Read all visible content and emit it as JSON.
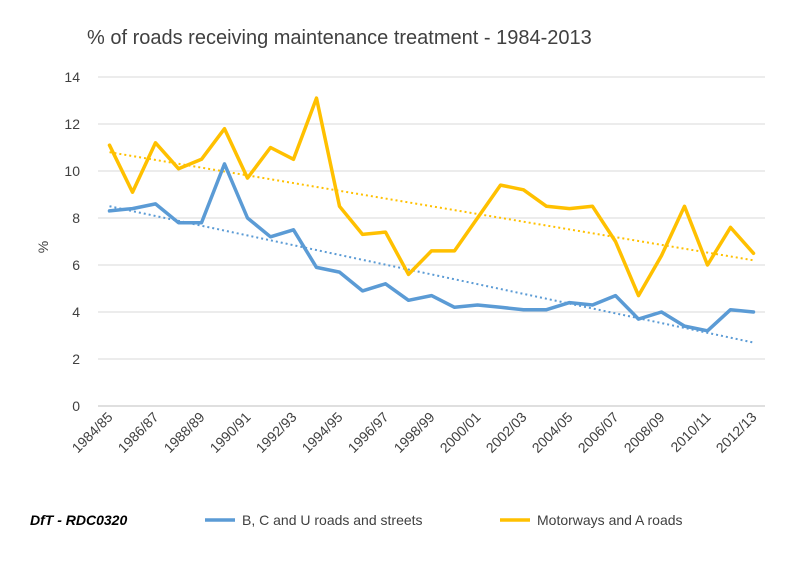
{
  "chart_data": {
    "type": "line",
    "title": "% of roads receiving maintenance treatment  - 1984-2013",
    "ylabel": "%",
    "xlabel": "",
    "ylim": [
      0,
      14
    ],
    "yticks": [
      0,
      2,
      4,
      6,
      8,
      10,
      12,
      14
    ],
    "grid": true,
    "legend_position": "bottom",
    "source_note": "DfT - RDC0320",
    "x": [
      "1984/85",
      "1985/86",
      "1986/87",
      "1987/88",
      "1988/89",
      "1989/90",
      "1990/91",
      "1991/92",
      "1992/93",
      "1993/94",
      "1994/95",
      "1995/96",
      "1996/97",
      "1997/98",
      "1998/99",
      "1999/00",
      "2000/01",
      "2001/02",
      "2002/03",
      "2003/04",
      "2004/05",
      "2005/06",
      "2006/07",
      "2007/08",
      "2008/09",
      "2009/10",
      "2010/11",
      "2011/12",
      "2012/13"
    ],
    "x_tick_labels": [
      "1984/85",
      "1986/87",
      "1988/89",
      "1990/91",
      "1992/93",
      "1994/95",
      "1996/97",
      "1998/99",
      "2000/01",
      "2002/03",
      "2004/05",
      "2006/07",
      "2008/09",
      "2010/11",
      "2012/13"
    ],
    "series": [
      {
        "name": "B, C and U roads and streets",
        "color": "#5b9bd5",
        "values": [
          8.3,
          8.4,
          8.6,
          7.8,
          7.8,
          10.3,
          8.0,
          7.2,
          7.5,
          5.9,
          5.7,
          4.9,
          5.2,
          4.5,
          4.7,
          4.2,
          4.3,
          4.2,
          4.1,
          4.1,
          4.4,
          4.3,
          4.7,
          3.7,
          4.0,
          3.4,
          3.2,
          4.1,
          4.0
        ],
        "trendline": {
          "style": "dotted",
          "start": 8.5,
          "end": 2.7
        }
      },
      {
        "name": "Motorways and A roads",
        "color": "#ffc000",
        "values": [
          11.1,
          9.1,
          11.2,
          10.1,
          10.5,
          11.8,
          9.7,
          11.0,
          10.5,
          13.1,
          8.5,
          7.3,
          7.4,
          5.6,
          6.6,
          6.6,
          8.0,
          9.4,
          9.2,
          8.5,
          8.4,
          8.5,
          7.0,
          4.7,
          6.4,
          8.5,
          6.0,
          7.6,
          6.5
        ],
        "trendline": {
          "style": "dotted",
          "start": 10.8,
          "end": 6.2
        }
      }
    ]
  }
}
